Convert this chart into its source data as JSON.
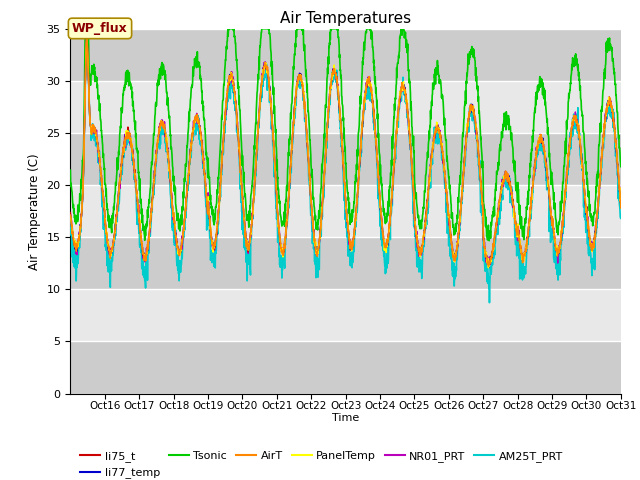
{
  "title": "Air Temperatures",
  "ylabel": "Air Temperature (C)",
  "xlabel": "Time",
  "annotation_text": "WP_flux",
  "annotation_color": "#8B0000",
  "annotation_bg": "#FFFFCC",
  "annotation_edge": "#AA8800",
  "ylim": [
    0,
    35
  ],
  "xlim_days": [
    15.0,
    31.0
  ],
  "x_ticks": [
    16,
    17,
    18,
    19,
    20,
    21,
    22,
    23,
    24,
    25,
    26,
    27,
    28,
    29,
    30,
    31
  ],
  "x_tick_labels": [
    "Oct 16",
    "Oct 17",
    "Oct 18",
    "Oct 19",
    "Oct 20",
    "Oct 21",
    "Oct 22",
    "Oct 23",
    "Oct 24",
    "Oct 25",
    "Oct 26",
    "Oct 27",
    "Oct 28",
    "Oct 29",
    "Oct 30",
    "Oct 31"
  ],
  "y_ticks": [
    0,
    5,
    10,
    15,
    20,
    25,
    30,
    35
  ],
  "series": {
    "li75_t": {
      "color": "#CC0000",
      "lw": 1.0,
      "zorder": 6
    },
    "li77_temp": {
      "color": "#0000CC",
      "lw": 1.0,
      "zorder": 6
    },
    "Tsonic": {
      "color": "#00CC00",
      "lw": 1.2,
      "zorder": 4
    },
    "AirT": {
      "color": "#FF8800",
      "lw": 1.0,
      "zorder": 7
    },
    "PanelTemp": {
      "color": "#FFFF00",
      "lw": 1.0,
      "zorder": 7
    },
    "NR01_PRT": {
      "color": "#BB00BB",
      "lw": 1.0,
      "zorder": 5
    },
    "AM25T_PRT": {
      "color": "#00CCCC",
      "lw": 1.2,
      "zorder": 3
    }
  },
  "plot_bg": "#E0E0E0",
  "fig_bg": "#FFFFFF",
  "band_light": "#CCCCCC",
  "band_dark": "#E8E8E8",
  "grid_color": "#FFFFFF",
  "grid_lw": 1.0
}
